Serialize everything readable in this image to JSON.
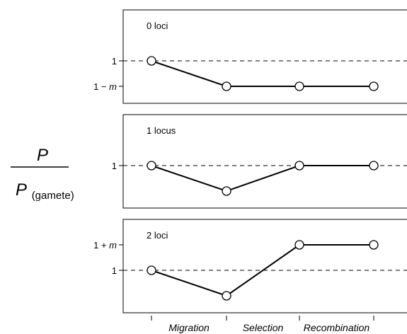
{
  "chart_data": {
    "type": "line",
    "categories": [
      "Migration",
      "Selection",
      "Recombination"
    ],
    "ylabel_numerator": "P",
    "ylabel_denominator_base": "P",
    "ylabel_denominator_subscript": "(gamete)",
    "panels": [
      {
        "label": "0 loci",
        "y_ticks": [
          {
            "value": 1,
            "label": "1"
          },
          {
            "value": 0.5,
            "label_base": "1 − ",
            "label_var": "m"
          }
        ],
        "dashed_reference": 1,
        "ylim": [
          0.2,
          2
        ],
        "points": [
          1,
          0.5,
          0.5,
          0.5
        ]
      },
      {
        "label": "1 locus",
        "y_ticks": [
          {
            "value": 1,
            "label": "1"
          }
        ],
        "dashed_reference": 1,
        "ylim": [
          0.2,
          2
        ],
        "points": [
          1,
          0.5,
          1,
          1
        ]
      },
      {
        "label": "2 loci",
        "y_ticks": [
          {
            "value": 1.5,
            "label_base": "1 + ",
            "label_var": "m"
          },
          {
            "value": 1,
            "label": "1"
          }
        ],
        "dashed_reference": 1,
        "ylim": [
          0.2,
          2
        ],
        "points": [
          1,
          0.5,
          1.5,
          1.5
        ]
      }
    ]
  }
}
